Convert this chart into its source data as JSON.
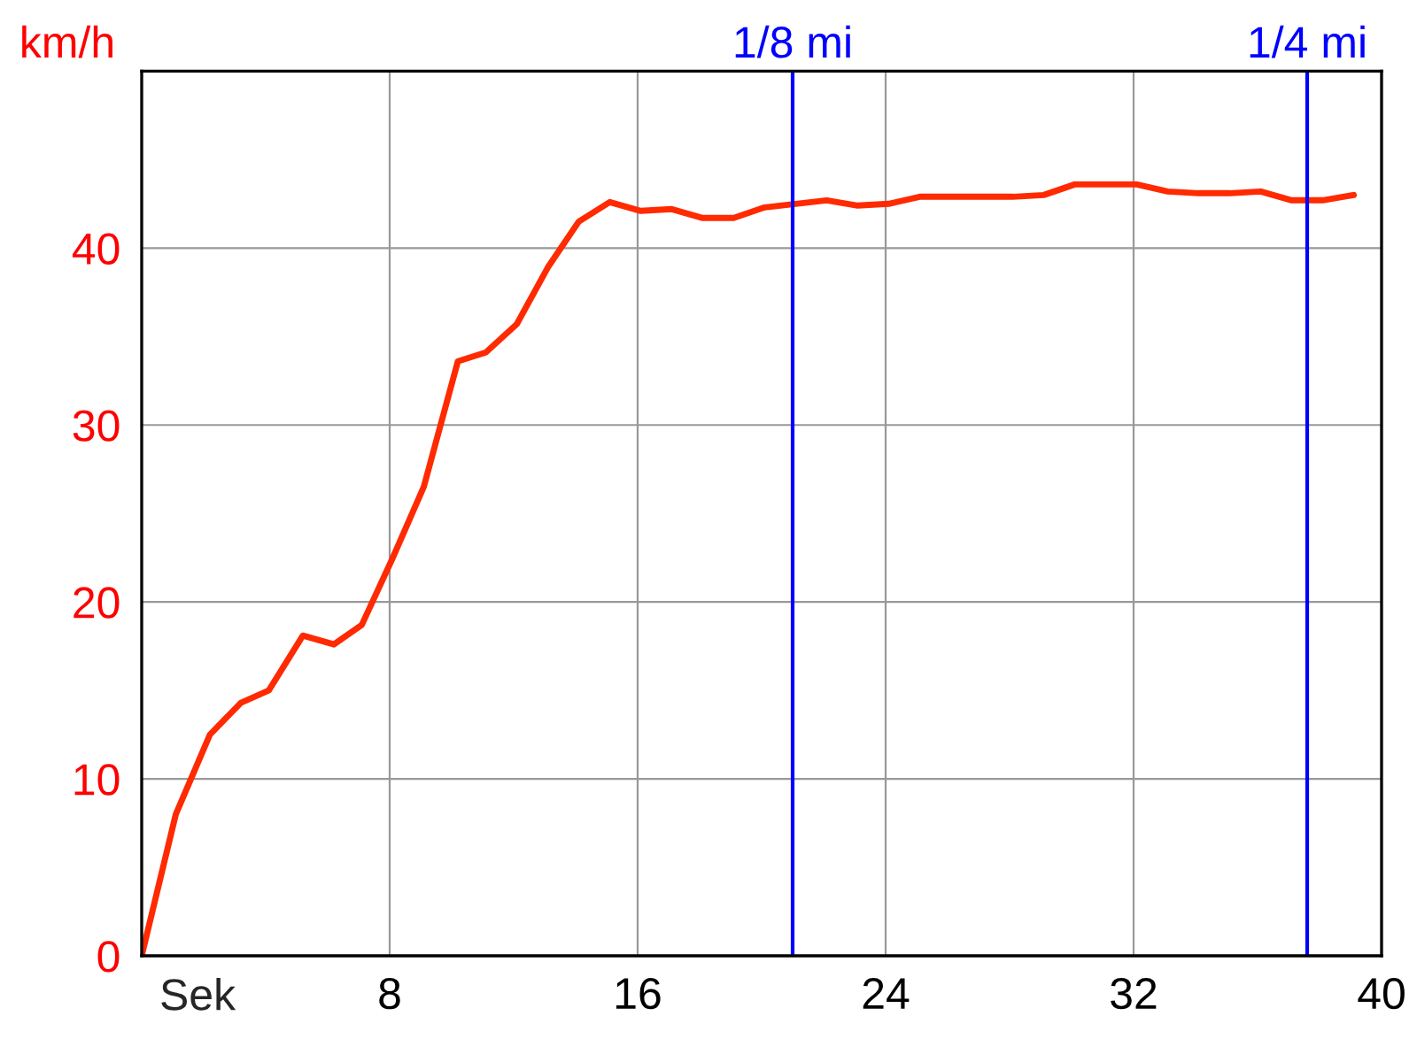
{
  "chart_data": {
    "type": "line",
    "xlabel": "Sek",
    "ylabel": "km/h",
    "series": [
      {
        "color": "#ff2a00",
        "x": [
          0,
          1.1,
          2.2,
          3.2,
          4.1,
          5.2,
          6.2,
          7.1,
          8.1,
          9.1,
          10.2,
          11.1,
          12.1,
          13.1,
          14.1,
          15.1,
          16.1,
          17.1,
          18.1,
          19.1,
          20.1,
          21.1,
          22.1,
          23.1,
          24.1,
          25.1,
          26.1,
          27.1,
          28.1,
          29.1,
          30.1,
          31.1,
          32.1,
          33.1,
          34.1,
          35.1,
          36.1,
          37.1,
          38.1,
          39.1
        ],
        "values": [
          0,
          8,
          12.5,
          14.3,
          15,
          18.1,
          17.6,
          18.7,
          22.5,
          26.5,
          33.6,
          34.1,
          35.7,
          38.9,
          41.5,
          42.6,
          42.1,
          42.2,
          41.7,
          41.7,
          42.3,
          42.5,
          42.7,
          42.4,
          42.5,
          42.9,
          42.9,
          42.9,
          42.9,
          43.0,
          43.6,
          43.6,
          43.6,
          43.2,
          43.1,
          43.1,
          43.2,
          42.7,
          42.7,
          43.0
        ]
      }
    ],
    "xlim": [
      0,
      40
    ],
    "xticks": [
      8,
      16,
      24,
      32,
      40
    ],
    "ylim": [
      0,
      50
    ],
    "yticks": [
      0,
      10,
      20,
      30,
      40
    ],
    "grid": true,
    "marker": "none",
    "line_style": "solid",
    "ref_lines": [
      {
        "axis": "x",
        "value": 21.0,
        "label": "1/8 mi",
        "color": "#0000ff"
      },
      {
        "axis": "x",
        "value": 37.6,
        "label": "1/4 mi",
        "color": "#0000ff"
      }
    ]
  }
}
